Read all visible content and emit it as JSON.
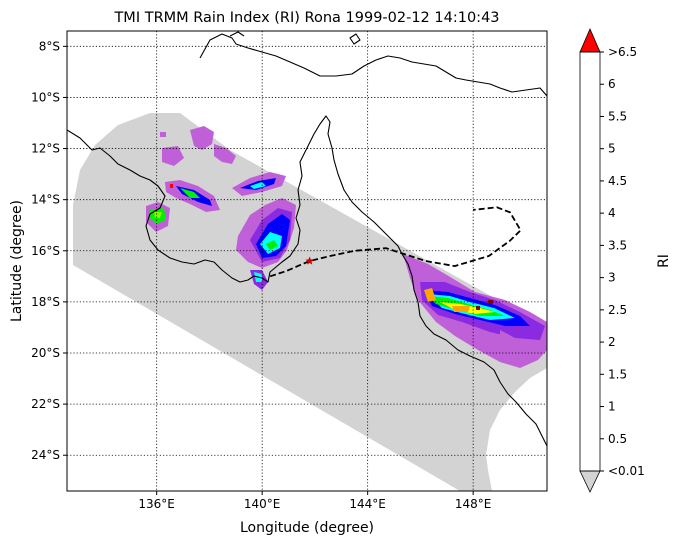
{
  "title": "TMI TRMM Rain Index (RI) Rona 1999-02-12 14:10:43",
  "map": {
    "xlabel": "Longitude (degree)",
    "ylabel": "Latitude (degree)",
    "lon_range": [
      132.6,
      150.8
    ],
    "lat_range": [
      -25.4,
      -7.4
    ],
    "lon_ticks": [
      {
        "value": 136,
        "label": "136°E"
      },
      {
        "value": 140,
        "label": "140°E"
      },
      {
        "value": 144,
        "label": "144°E"
      },
      {
        "value": 148,
        "label": "148°E"
      }
    ],
    "lat_ticks": [
      {
        "value": -8,
        "label": "8°S"
      },
      {
        "value": -10,
        "label": "10°S"
      },
      {
        "value": -12,
        "label": "12°S"
      },
      {
        "value": -14,
        "label": "14°S"
      },
      {
        "value": -16,
        "label": "16°S"
      },
      {
        "value": -18,
        "label": "18°S"
      },
      {
        "value": -20,
        "label": "20°S"
      },
      {
        "value": -22,
        "label": "22°S"
      },
      {
        "value": -24,
        "label": "24°S"
      }
    ],
    "grid": "dotted",
    "swath_color": "#d3d3d3",
    "storm_marker": {
      "lon": 141.8,
      "lat": -16.4,
      "color": "#d40000"
    },
    "track": [
      [
        140.3,
        -17.0
      ],
      [
        140.9,
        -16.8
      ],
      [
        141.8,
        -16.4
      ],
      [
        142.6,
        -16.2
      ],
      [
        143.5,
        -16.0
      ],
      [
        144.7,
        -15.9
      ],
      [
        145.6,
        -16.2
      ],
      [
        146.2,
        -16.4
      ],
      [
        147.3,
        -16.6
      ],
      [
        148.6,
        -16.2
      ],
      [
        149.4,
        -15.6
      ],
      [
        149.8,
        -15.2
      ],
      [
        149.4,
        -14.5
      ],
      [
        148.9,
        -14.3
      ],
      [
        148.0,
        -14.4
      ]
    ]
  },
  "colorbar": {
    "label": "RI",
    "levels": [
      {
        "label": "<0.01",
        "color": "#c060d8"
      },
      {
        "label": "0.5",
        "color": "#8a2be2"
      },
      {
        "label": "1",
        "color": "#0000ff"
      },
      {
        "label": "1.5",
        "color": "#4169e1"
      },
      {
        "label": "2",
        "color": "#00ffff"
      },
      {
        "label": "2.5",
        "color": "#00ee00"
      },
      {
        "label": "3",
        "color": "#7cfc00"
      },
      {
        "label": "3.5",
        "color": "#ffff00"
      },
      {
        "label": "4",
        "color": "#ffa500"
      },
      {
        "label": "4.5",
        "color": "#8b0000"
      },
      {
        "label": "5",
        "color": "#000000"
      },
      {
        "label": "5.5",
        "color": "#000000"
      },
      {
        "label": "6",
        "color": "#000000"
      },
      {
        "label": ">6.5",
        "color": "#ff0000"
      }
    ],
    "under_color": "#d3d3d3",
    "over_color": "#ff0000"
  }
}
